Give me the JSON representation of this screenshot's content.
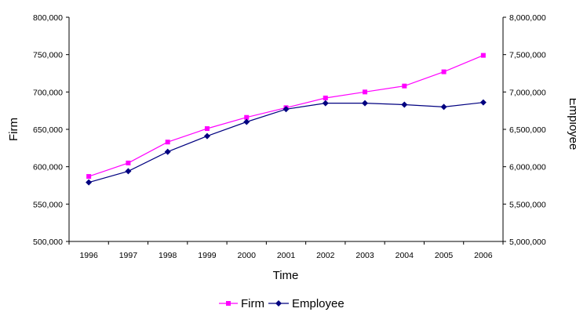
{
  "chart_data": {
    "type": "line",
    "xlabel": "Time",
    "ylabel_left": "Firm",
    "ylabel_right": "Employee",
    "categories": [
      "1996",
      "1997",
      "1998",
      "1999",
      "2000",
      "2001",
      "2002",
      "2003",
      "2004",
      "2005",
      "2006"
    ],
    "y_left_ticks": [
      "800,000",
      "750,000",
      "700,000",
      "650,000",
      "600,000",
      "550,000",
      "500,000"
    ],
    "y_right_ticks": [
      "8,000,000",
      "7,500,000",
      "7,000,000",
      "6,500,000",
      "6,000,000",
      "5,500,000",
      "5,000,000"
    ],
    "ylim_left": [
      500000,
      800000
    ],
    "ylim_right": [
      5000000,
      8000000
    ],
    "grid": false,
    "legend_position": "bottom-center",
    "series": [
      {
        "name": "Firm",
        "axis": "left",
        "color": "#ff00ff",
        "marker": "square",
        "values": [
          587000,
          605000,
          633000,
          651000,
          666000,
          679000,
          692000,
          700000,
          708000,
          727000,
          749000
        ]
      },
      {
        "name": "Employee",
        "axis": "right",
        "color": "#000080",
        "marker": "diamond",
        "values": [
          5790000,
          5940000,
          6200000,
          6410000,
          6600000,
          6770000,
          6850000,
          6850000,
          6830000,
          6800000,
          6860000
        ]
      }
    ]
  }
}
